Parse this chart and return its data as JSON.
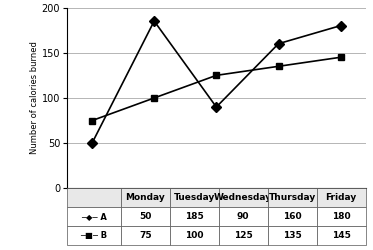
{
  "days": [
    "Monday",
    "Tuesday",
    "Wednesday",
    "Thursday",
    "Friday"
  ],
  "A_values": [
    50,
    185,
    90,
    160,
    180
  ],
  "B_values": [
    75,
    100,
    125,
    135,
    145
  ],
  "ylabel": "Number of calories burned",
  "ylim": [
    0,
    200
  ],
  "yticks": [
    0,
    50,
    100,
    150,
    200
  ],
  "color_line": "#000000",
  "marker_A": "D",
  "marker_B": "s",
  "table_col_labels": [
    "",
    "Monday",
    "Tuesday",
    "Wednesday",
    "Thursday",
    "Friday"
  ],
  "table_row_A_label": "─◆─ A",
  "table_row_B_label": "─■─ B",
  "table_row_A_vals": [
    "50",
    "185",
    "90",
    "160",
    "180"
  ],
  "table_row_B_vals": [
    "75",
    "100",
    "125",
    "135",
    "145"
  ],
  "grid_color": "#aaaaaa",
  "grid_linewidth": 0.6,
  "line_width": 1.2,
  "marker_size": 5
}
